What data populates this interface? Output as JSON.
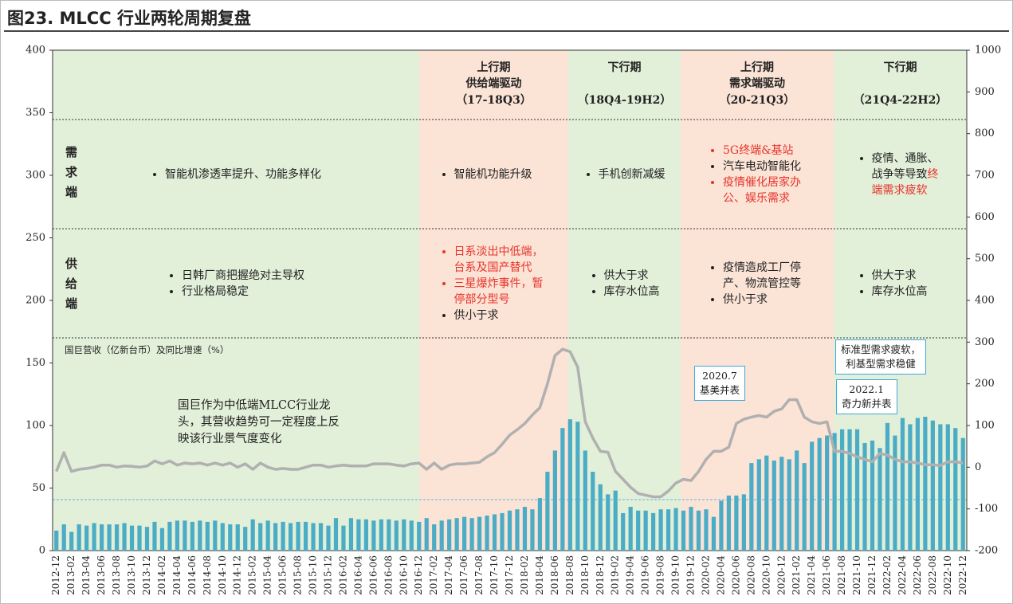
{
  "title": "图23. MLCC 行业两轮周期复盘",
  "chart_data": {
    "type": "combo",
    "categories": [
      "2012-12",
      null,
      "2013-02",
      null,
      "2013-04",
      null,
      "2013-06",
      null,
      "2013-08",
      null,
      "2013-10",
      null,
      "2013-12",
      null,
      "2014-02",
      null,
      "2014-04",
      null,
      "2014-06",
      null,
      "2014-08",
      null,
      "2014-10",
      null,
      "2014-12",
      null,
      "2015-02",
      null,
      "2015-04",
      null,
      "2015-06",
      null,
      "2015-08",
      null,
      "2015-10",
      null,
      "2015-12",
      null,
      "2016-02",
      null,
      "2016-04",
      null,
      "2016-06",
      null,
      "2016-08",
      null,
      "2016-10",
      null,
      "2016-12",
      null,
      "2017-02",
      null,
      "2017-04",
      null,
      "2017-06",
      null,
      "2017-08",
      null,
      "2017-10",
      null,
      "2017-12",
      null,
      "2018-02",
      null,
      "2018-04",
      null,
      "2018-06",
      null,
      "2018-08",
      null,
      "2018-10",
      null,
      "2018-12",
      null,
      "2019-02",
      null,
      "2019-04",
      null,
      "2019-06",
      null,
      "2019-08",
      null,
      "2019-10",
      null,
      "2019-12",
      null,
      "2020-02",
      null,
      "2020-04",
      null,
      "2020-06",
      null,
      "2020-08",
      null,
      "2020-10",
      null,
      "2020-12",
      null,
      "2021-02",
      null,
      "2021-04",
      null,
      "2021-06",
      null,
      "2021-08",
      null,
      "2021-10",
      null,
      "2021-12",
      null,
      "2022-02",
      null,
      "2022-04",
      null,
      "2022-06",
      null,
      "2022-08",
      null,
      "2022-10",
      null,
      "2022-12"
    ],
    "series": [
      {
        "type": "bar",
        "axis": "y",
        "color": "#4bacc6",
        "values": [
          16,
          21,
          15,
          21,
          20,
          22,
          21,
          21,
          21,
          22,
          20,
          20,
          19,
          23,
          18,
          23,
          24,
          24,
          23,
          24,
          23,
          24,
          22,
          21,
          21,
          19,
          25,
          22,
          24,
          22,
          23,
          22,
          23,
          23,
          22,
          22,
          20,
          26,
          20,
          26,
          25,
          25,
          24,
          25,
          25,
          24,
          25,
          24,
          23,
          26,
          21,
          24,
          25,
          26,
          27,
          26,
          27,
          28,
          29,
          30,
          32,
          33,
          35,
          33,
          42,
          63,
          80,
          98,
          105,
          103,
          80,
          63,
          53,
          45,
          48,
          30,
          35,
          32,
          32,
          30,
          33,
          33,
          34,
          32,
          35,
          32,
          33,
          27,
          40,
          44,
          44,
          45,
          70,
          73,
          76,
          72,
          75,
          73,
          80,
          70,
          87,
          90,
          92,
          94,
          97,
          97,
          97,
          86,
          88,
          82,
          102,
          92,
          106,
          101,
          106,
          107,
          104,
          101,
          101,
          98,
          90
        ]
      },
      {
        "type": "line",
        "axis": "y2",
        "color": "#b0b0b0",
        "values": [
          -10,
          35,
          -10,
          -5,
          -3,
          0,
          5,
          5,
          0,
          3,
          2,
          0,
          3,
          15,
          8,
          15,
          5,
          10,
          8,
          10,
          5,
          10,
          5,
          10,
          0,
          8,
          -5,
          10,
          0,
          -5,
          -3,
          -5,
          -5,
          0,
          5,
          5,
          0,
          3,
          5,
          3,
          3,
          3,
          8,
          8,
          8,
          5,
          3,
          8,
          10,
          -5,
          10,
          -5,
          5,
          8,
          8,
          10,
          12,
          25,
          35,
          55,
          77,
          90,
          105,
          125,
          143,
          200,
          268,
          283,
          277,
          240,
          109,
          70,
          38,
          36,
          -10,
          -29,
          -48,
          -63,
          -67,
          -71,
          -71,
          -57,
          -38,
          -29,
          -32,
          -10,
          19,
          38,
          38,
          48,
          105,
          115,
          120,
          124,
          120,
          134,
          140,
          162,
          162,
          120,
          109,
          105,
          109,
          38,
          38,
          33,
          25,
          19,
          13,
          33,
          29,
          19,
          13,
          13,
          10,
          6,
          6,
          4,
          13,
          13,
          10
        ]
      }
    ],
    "ylim": [
      0,
      400
    ],
    "yticks": [
      0,
      50,
      100,
      150,
      200,
      250,
      300,
      350,
      400
    ],
    "y2lim": [
      -200,
      1000
    ],
    "y2ticks": [
      -200,
      -100,
      0,
      100,
      200,
      300,
      400,
      500,
      600,
      700,
      800,
      900,
      1000
    ],
    "row_labels": [
      "需求端",
      "供给端"
    ],
    "phases": [
      {
        "color": "#e2efd9",
        "demand": [
          [
            {
              "text": "智能机渗透率提升、功能多样化"
            }
          ]
        ],
        "supply": [
          [
            {
              "text": "日韩厂商把握绝对主导权"
            }
          ],
          [
            {
              "text": "行业格局稳定"
            }
          ]
        ]
      },
      {
        "color": "#fbe3d6",
        "title": "上行期",
        "subtitle": "供给端驱动",
        "range": "（17-18Q3）",
        "demand": [
          [
            {
              "text": "智能机功能升级"
            }
          ]
        ],
        "supply": [
          [
            {
              "text": "日系淡出中低端，台系及国产替代",
              "color": "#e8332a"
            }
          ],
          [
            {
              "text": "三星爆炸事件，暂停部分型号",
              "color": "#e8332a"
            }
          ],
          [
            {
              "text": "供小于求"
            }
          ]
        ]
      },
      {
        "color": "#e2efd9",
        "title": "下行期",
        "range": "（18Q4-19H2）",
        "demand": [
          [
            {
              "text": "手机创新减缓"
            }
          ]
        ],
        "supply": [
          [
            {
              "text": "供大于求"
            }
          ],
          [
            {
              "text": "库存水位高"
            }
          ]
        ]
      },
      {
        "color": "#fbe3d6",
        "title": "上行期",
        "subtitle": "需求端驱动",
        "range": "（20-21Q3）",
        "demand": [
          [
            {
              "text": "5G终端&基站",
              "color": "#e8332a"
            }
          ],
          [
            {
              "text": "汽车电动智能化"
            }
          ],
          [
            {
              "text": "疫情催化居家办公、娱乐需求",
              "color": "#e8332a"
            }
          ]
        ],
        "supply": [
          [
            {
              "text": "疫情造成工厂停产、物流管控等"
            }
          ],
          [
            {
              "text": "供小于求"
            }
          ]
        ]
      },
      {
        "color": "#e2efd9",
        "title": "下行期",
        "range": "（21Q4-22H2）",
        "demand": [
          [
            {
              "text": "疫情、通胀、战争等导致"
            },
            {
              "text": "终端需求疲软",
              "color": "#e8332a"
            }
          ]
        ],
        "supply": [
          [
            {
              "text": "供大于求"
            }
          ],
          [
            {
              "text": "库存水位高"
            }
          ]
        ]
      }
    ],
    "axis_note": "国巨营收（亿新台币）及同比增速（%）",
    "description": "国巨作为中低端MLCC行业龙头，其营收趋势可一定程度上反映该行业景气度变化",
    "callouts": [
      {
        "lines": [
          "2020.7",
          "基美并表"
        ]
      },
      {
        "lines": [
          "2022.1",
          "奇力新并表"
        ]
      },
      {
        "lines": [
          "标准型需求疲软，",
          "利基型需求稳健"
        ]
      }
    ]
  }
}
